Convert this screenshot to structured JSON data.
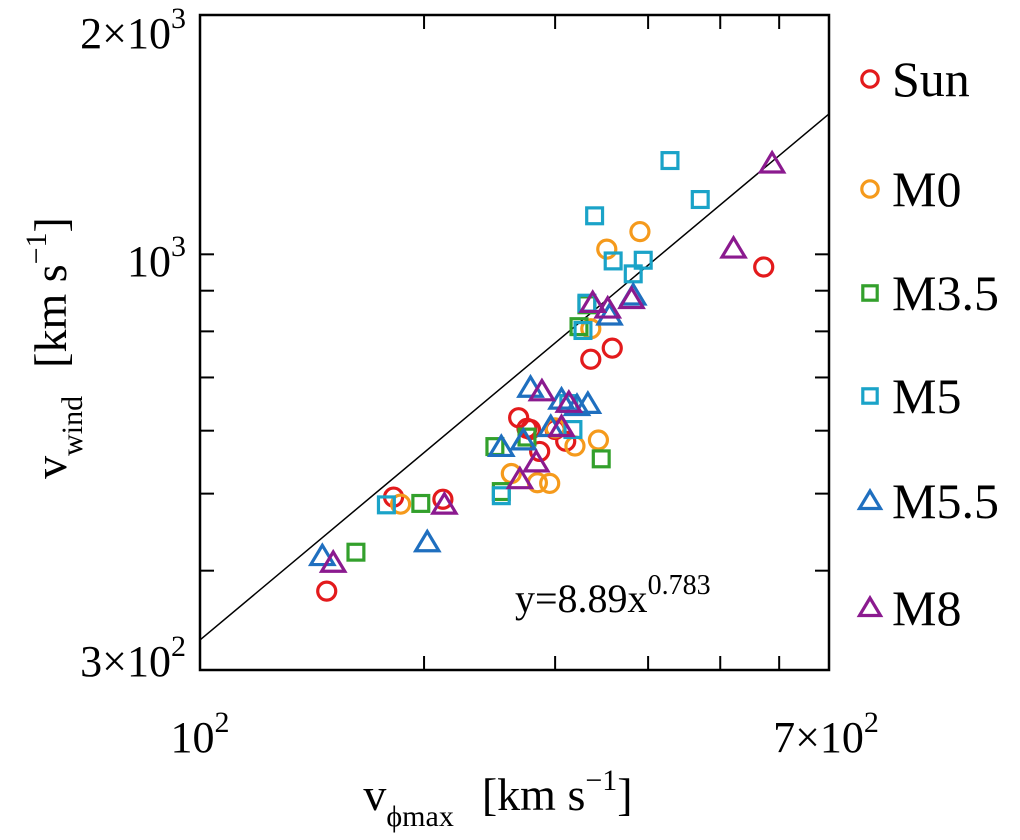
{
  "chart_data": {
    "type": "scatter",
    "scale": "log-log",
    "xlim": [
      100,
      700
    ],
    "ylim": [
      300,
      2000
    ],
    "x_ticks": [
      {
        "base": "10",
        "exp": "2"
      },
      {
        "base": "7×10",
        "exp": "2"
      }
    ],
    "y_ticks": [
      {
        "base": "2×10",
        "exp": "3"
      },
      {
        "base": "10",
        "exp": "3"
      },
      {
        "base": "3×10",
        "exp": "2"
      }
    ],
    "xlabel": {
      "main": "v",
      "sub": "ϕmax",
      "units": "[km s",
      "units_exp": "−1",
      "units_close": "]"
    },
    "ylabel": {
      "main": "v",
      "sub": "wind",
      "units": "[km s",
      "units_exp": "−1",
      "units_close": "]"
    },
    "fit": {
      "label_main": "y=8.89x",
      "label_exp": "0.783",
      "coef": 8.89,
      "power": 0.783
    },
    "legend": [
      {
        "name": "Sun",
        "color": "#e31a1c",
        "marker": "circle"
      },
      {
        "name": "M0",
        "color": "#f59a1c",
        "marker": "circle"
      },
      {
        "name": "M3.5",
        "color": "#33a02c",
        "marker": "square"
      },
      {
        "name": "M5",
        "color": "#1aa3c8",
        "marker": "square"
      },
      {
        "name": "M5.5",
        "color": "#1f6fbf",
        "marker": "triangle"
      },
      {
        "name": "M8",
        "color": "#8b1a8f",
        "marker": "triangle"
      }
    ],
    "series": [
      {
        "name": "Sun",
        "points": [
          [
            148,
            377
          ],
          [
            182,
            495
          ],
          [
            212,
            492
          ],
          [
            268,
            623
          ],
          [
            275,
            604
          ],
          [
            278,
            602
          ],
          [
            286,
            565
          ],
          [
            300,
            602
          ],
          [
            310,
            582
          ],
          [
            335,
            738
          ],
          [
            358,
            762
          ],
          [
            572,
            964
          ]
        ]
      },
      {
        "name": "M0",
        "points": [
          [
            186,
            485
          ],
          [
            262,
            530
          ],
          [
            284,
            516
          ],
          [
            295,
            515
          ],
          [
            300,
            605
          ],
          [
            319,
            574
          ],
          [
            335,
            806
          ],
          [
            343,
            584
          ],
          [
            352,
            1015
          ],
          [
            390,
            1068
          ]
        ]
      },
      {
        "name": "M3.5",
        "points": [
          [
            162,
            422
          ],
          [
            198,
            486
          ],
          [
            249,
            573
          ],
          [
            254,
            503
          ],
          [
            275,
            589
          ],
          [
            323,
            811
          ],
          [
            331,
            864
          ],
          [
            346,
            553
          ]
        ]
      },
      {
        "name": "M5",
        "points": [
          [
            178,
            484
          ],
          [
            254,
            497
          ],
          [
            313,
            649
          ],
          [
            317,
            602
          ],
          [
            327,
            802
          ],
          [
            331,
            868
          ],
          [
            339,
            1118
          ],
          [
            359,
            981
          ],
          [
            382,
            945
          ],
          [
            394,
            983
          ],
          [
            428,
            1312
          ],
          [
            470,
            1172
          ]
        ]
      },
      {
        "name": "M5.5",
        "points": [
          [
            146,
            417
          ],
          [
            202,
            434
          ],
          [
            254,
            572
          ],
          [
            272,
            583
          ],
          [
            278,
            679
          ],
          [
            296,
            606
          ],
          [
            306,
            656
          ],
          [
            321,
            644
          ],
          [
            332,
            648
          ],
          [
            355,
            837
          ],
          [
            382,
            887
          ]
        ]
      },
      {
        "name": "M8",
        "points": [
          [
            151,
            409
          ],
          [
            213,
            484
          ],
          [
            269,
            521
          ],
          [
            283,
            547
          ],
          [
            288,
            672
          ],
          [
            306,
            606
          ],
          [
            313,
            650
          ],
          [
            337,
            868
          ],
          [
            353,
            854
          ],
          [
            380,
            878
          ],
          [
            521,
            1016
          ],
          [
            587,
            1300
          ]
        ]
      }
    ]
  }
}
